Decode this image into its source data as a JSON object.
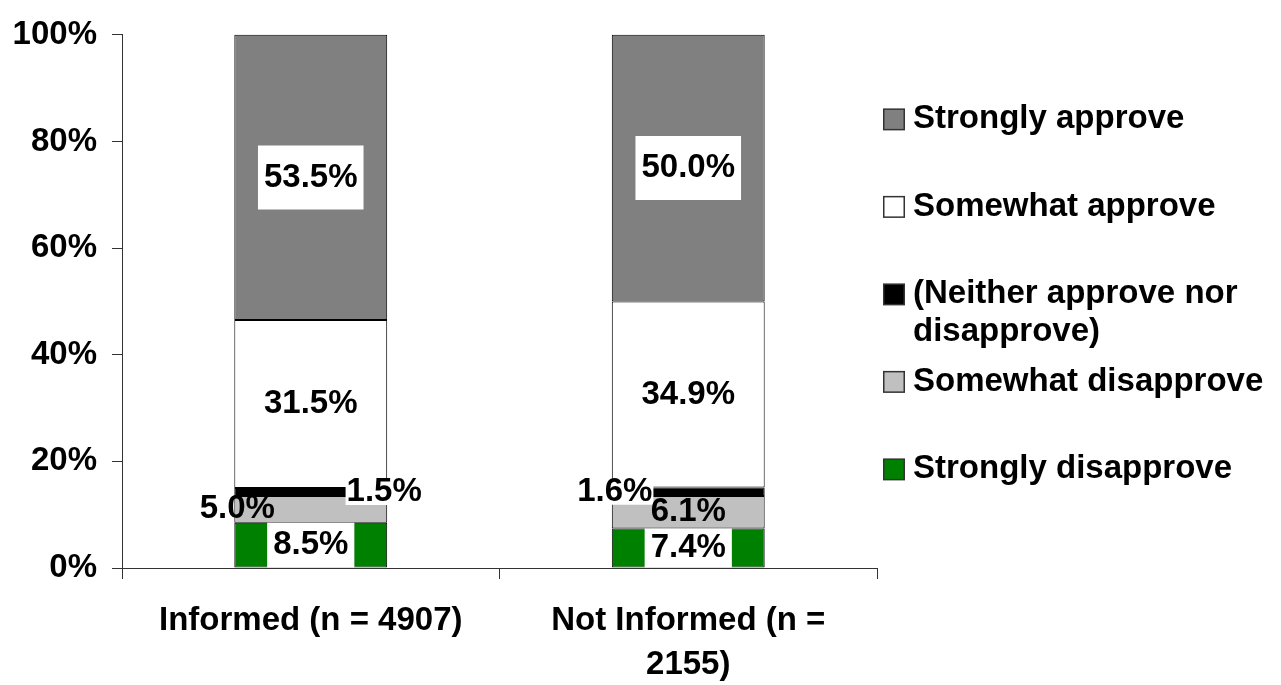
{
  "chart_data": {
    "type": "bar",
    "stacked": true,
    "legend": "right",
    "categories": [
      "Informed (n = 4907)",
      "Not Informed (n = 2155)"
    ],
    "series": [
      {
        "name": "Strongly disapprove",
        "color": "#008000",
        "values": [
          8.5,
          7.4
        ],
        "value_labels": [
          "8.5%",
          "7.4%"
        ]
      },
      {
        "name": "Somewhat disapprove",
        "color": "#c0c0c0",
        "values": [
          5.0,
          6.1
        ],
        "value_labels": [
          "5.0%",
          "6.1%"
        ]
      },
      {
        "name": "(Neither approve nor disapprove)",
        "color": "#000000",
        "values": [
          1.5,
          1.6
        ],
        "value_labels": [
          "1.5%",
          "1.6%"
        ]
      },
      {
        "name": "Somewhat approve",
        "color": "#ffffff",
        "values": [
          31.5,
          34.9
        ],
        "value_labels": [
          "31.5%",
          "34.9%"
        ]
      },
      {
        "name": "Strongly approve",
        "color": "#808080",
        "values": [
          53.5,
          50.0
        ],
        "value_labels": [
          "53.5%",
          "50.0%"
        ]
      }
    ],
    "ylim": [
      0,
      100
    ],
    "yticks": [
      {
        "value": 0,
        "label": "0%"
      },
      {
        "value": 20,
        "label": "20%"
      },
      {
        "value": 40,
        "label": "40%"
      },
      {
        "value": 60,
        "label": "60%"
      },
      {
        "value": 80,
        "label": "80%"
      },
      {
        "value": 100,
        "label": "100%"
      }
    ]
  }
}
